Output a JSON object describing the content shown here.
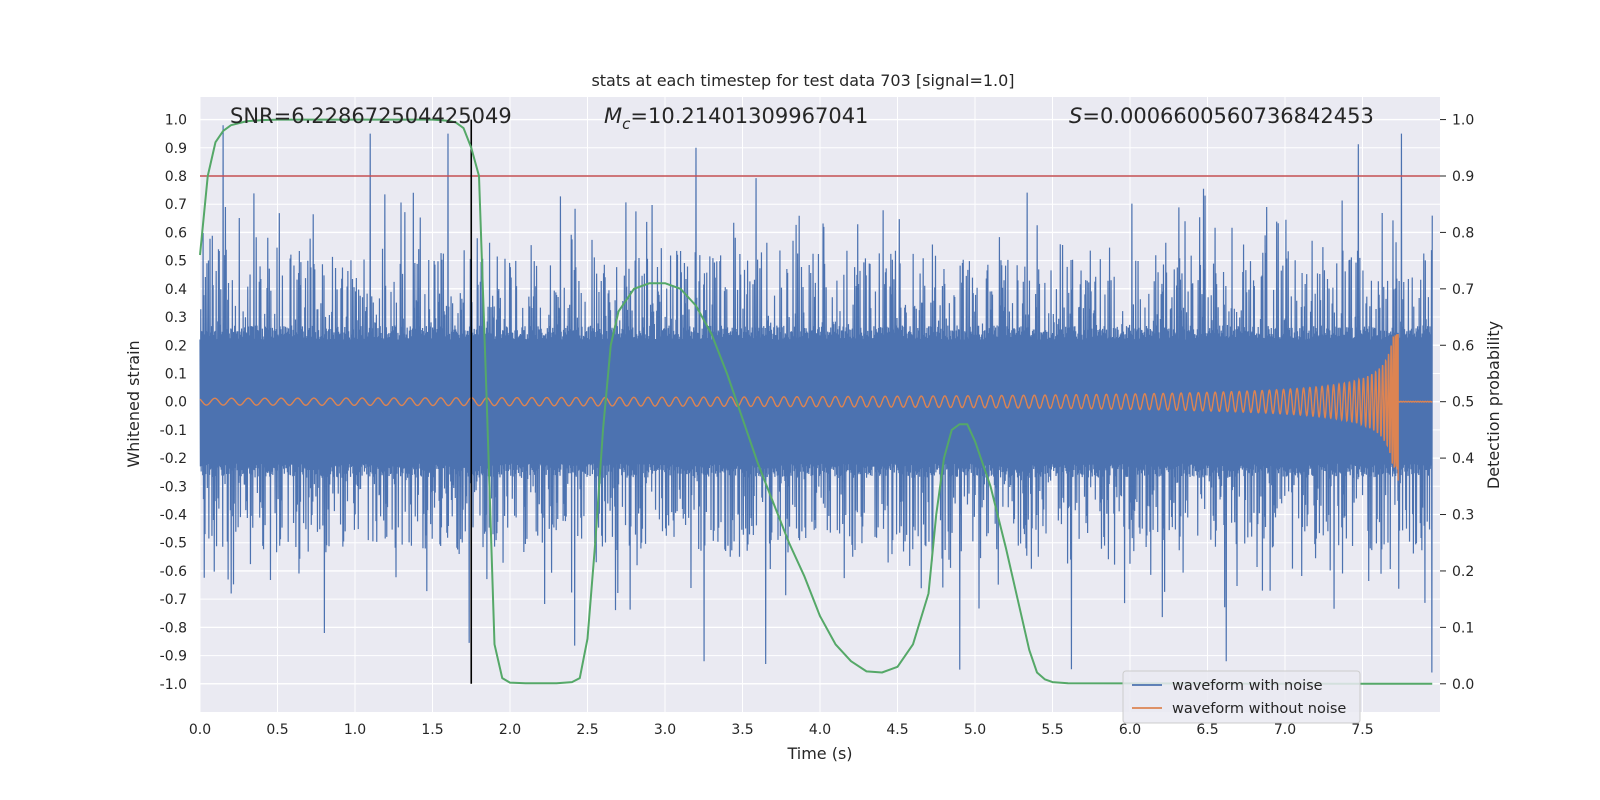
{
  "chart_data": {
    "type": "line",
    "title": "stats at each timestep for test data 703 [signal=1.0]",
    "xlabel": "Time (s)",
    "ylabel": "Whitened strain",
    "y2label": "Detection probability",
    "xlim": [
      0.0,
      8.0
    ],
    "ylim": [
      -1.1,
      1.08
    ],
    "y2lim": [
      -0.05,
      1.04
    ],
    "xticks": [
      "0.0",
      "0.5",
      "1.0",
      "1.5",
      "2.0",
      "2.5",
      "3.0",
      "3.5",
      "4.0",
      "4.5",
      "5.0",
      "5.5",
      "6.0",
      "6.5",
      "7.0",
      "7.5"
    ],
    "yticks": [
      "-1.0",
      "-0.9",
      "-0.8",
      "-0.7",
      "-0.6",
      "-0.5",
      "-0.4",
      "-0.3",
      "-0.2",
      "-0.1",
      "0.0",
      "0.1",
      "0.2",
      "0.3",
      "0.4",
      "0.5",
      "0.6",
      "0.7",
      "0.8",
      "0.9",
      "1.0"
    ],
    "y2ticks": [
      "0.0",
      "0.1",
      "0.2",
      "0.3",
      "0.4",
      "0.5",
      "0.6",
      "0.7",
      "0.8",
      "0.9",
      "1.0"
    ],
    "grid": true,
    "legend_position": "bottom-right",
    "annotations": {
      "snr": "SNR=6.228672504425049",
      "mc_symbol": "M",
      "mc_subscript": "c",
      "mc_value": "=10.21401309967041",
      "s_symbol": "S",
      "s_value": "=0.0006600560736842453"
    },
    "threshold": {
      "value": 0.9,
      "axis": "right",
      "color": "#c44e52"
    },
    "vertical_marker": {
      "x": 1.75,
      "color": "#000000"
    },
    "colors": {
      "noise": "#4c72b0",
      "clean": "#dd8452",
      "prob": "#55a868",
      "plot_bg": "#eaeaf2",
      "grid": "#ffffff"
    },
    "series": [
      {
        "name": "waveform with noise",
        "axis": "left",
        "style": "dense-noise",
        "amplitude_envelope": {
          "core": 0.22,
          "typical_peak": 0.5,
          "max_peak": 0.98
        },
        "notable_peaks": [
          [
            0.15,
            0.98
          ],
          [
            0.2,
            -0.68
          ],
          [
            0.8,
            -0.82
          ],
          [
            1.1,
            0.95
          ],
          [
            1.6,
            0.95
          ],
          [
            3.2,
            0.9
          ],
          [
            3.25,
            -0.92
          ],
          [
            3.65,
            -0.93
          ],
          [
            4.9,
            -0.95
          ],
          [
            6.62,
            -0.92
          ],
          [
            7.75,
            0.95
          ],
          [
            7.95,
            -0.96
          ]
        ]
      },
      {
        "name": "waveform without noise",
        "axis": "left",
        "style": "chirp",
        "t_merger": 7.73,
        "initial_amplitude": 0.012,
        "peak": 0.24,
        "trough": -0.28
      },
      {
        "name": "detection probability",
        "axis": "right",
        "x": [
          0.0,
          0.05,
          0.1,
          0.15,
          0.2,
          0.3,
          0.4,
          0.5,
          0.8,
          1.2,
          1.5,
          1.6,
          1.65,
          1.7,
          1.75,
          1.8,
          1.85,
          1.9,
          1.95,
          2.0,
          2.1,
          2.3,
          2.4,
          2.45,
          2.5,
          2.55,
          2.6,
          2.65,
          2.7,
          2.8,
          2.9,
          3.0,
          3.1,
          3.2,
          3.3,
          3.4,
          3.5,
          3.6,
          3.7,
          3.8,
          3.9,
          4.0,
          4.1,
          4.2,
          4.3,
          4.4,
          4.5,
          4.6,
          4.7,
          4.75,
          4.8,
          4.85,
          4.9,
          4.95,
          5.0,
          5.1,
          5.2,
          5.3,
          5.35,
          5.4,
          5.45,
          5.5,
          5.6,
          7.0,
          7.6,
          7.95
        ],
        "values": [
          0.76,
          0.9,
          0.96,
          0.98,
          0.99,
          0.997,
          0.999,
          1.0,
          1.0,
          1.0,
          1.0,
          0.998,
          0.995,
          0.985,
          0.95,
          0.9,
          0.5,
          0.07,
          0.01,
          0.002,
          0.001,
          0.001,
          0.003,
          0.01,
          0.08,
          0.25,
          0.45,
          0.6,
          0.66,
          0.7,
          0.71,
          0.71,
          0.7,
          0.67,
          0.62,
          0.55,
          0.47,
          0.39,
          0.32,
          0.25,
          0.19,
          0.12,
          0.07,
          0.04,
          0.022,
          0.02,
          0.03,
          0.07,
          0.16,
          0.3,
          0.4,
          0.45,
          0.46,
          0.46,
          0.43,
          0.35,
          0.24,
          0.12,
          0.06,
          0.02,
          0.008,
          0.003,
          0.001,
          0.0,
          0.0,
          0.0
        ]
      }
    ]
  }
}
